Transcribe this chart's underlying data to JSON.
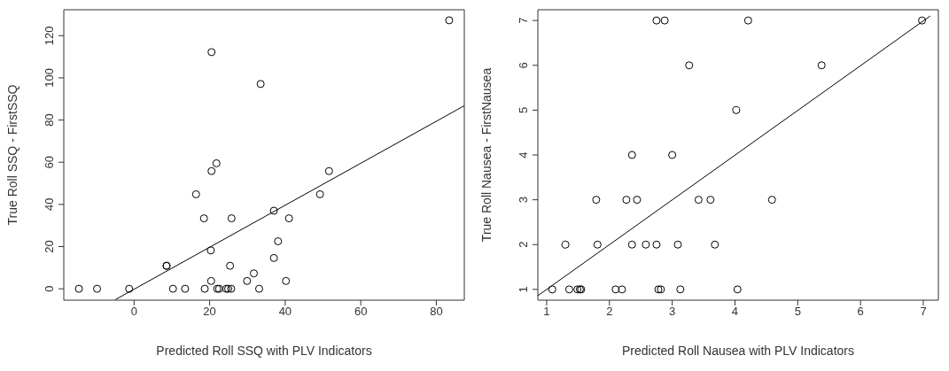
{
  "chart_data": [
    {
      "type": "scatter",
      "xlabel": "Predicted Roll SSQ with PLV Indicators",
      "ylabel": "True Roll SSQ - FirstSSQ",
      "xlim": [
        -18.6,
        87.4
      ],
      "ylim": [
        -5.4,
        132.3
      ],
      "xticks": [
        0,
        20,
        40,
        60,
        80
      ],
      "yticks": [
        0,
        20,
        40,
        60,
        80,
        100,
        120
      ],
      "marker": "circle",
      "grid": false,
      "series": [
        {
          "color": "#000000",
          "x": [
            -14.6,
            -9.8,
            -1.3,
            8.6,
            8.6,
            10.3,
            13.5,
            16.4,
            18.5,
            18.7,
            20.3,
            20.4,
            20.5,
            20.5,
            21.8,
            22.0,
            22.5,
            24.4,
            24.9,
            25.7,
            25.4,
            25.8,
            29.9,
            31.7,
            33.1,
            33.5,
            37.0,
            37.0,
            38.1,
            40.2,
            41.0,
            49.2,
            51.6,
            83.4
          ],
          "values": [
            0,
            0,
            0,
            10.9,
            10.9,
            0,
            0,
            44.8,
            33.4,
            0,
            18.2,
            3.7,
            55.8,
            112.2,
            59.5,
            0,
            0,
            0,
            0,
            0,
            10.9,
            33.4,
            3.7,
            7.3,
            0,
            97.1,
            14.6,
            37.0,
            22.5,
            3.7,
            33.4,
            44.8,
            55.8,
            127.3
          ]
        },
        {
          "type": "line",
          "marker": "none",
          "color": "#000000",
          "x": [
            -4.9,
            87.4
          ],
          "values": [
            -5.1,
            86.8
          ]
        }
      ]
    },
    {
      "type": "scatter",
      "xlabel": "Predicted Roll Nausea with PLV Indicators",
      "ylabel": "True Roll Nausea - FirstNausea",
      "xlim": [
        0.86,
        7.24
      ],
      "ylim": [
        0.76,
        7.24
      ],
      "xticks": [
        1,
        2,
        3,
        4,
        5,
        6,
        7
      ],
      "yticks": [
        1,
        2,
        3,
        4,
        5,
        6,
        7
      ],
      "marker": "circle",
      "grid": false,
      "series": [
        {
          "color": "#000000",
          "x": [
            2.75,
            2.88,
            4.21,
            6.98,
            3.27,
            5.38,
            4.02,
            2.36,
            3.0,
            1.79,
            2.27,
            2.44,
            3.42,
            3.61,
            4.59,
            1.3,
            1.81,
            2.36,
            2.58,
            2.75,
            3.09,
            3.68,
            1.09,
            1.36,
            1.49,
            1.53,
            1.55,
            2.1,
            2.2,
            2.78,
            2.82,
            3.13,
            4.04
          ],
          "values": [
            7,
            7,
            7,
            7,
            6,
            6,
            5,
            4,
            4,
            3,
            3,
            3,
            3,
            3,
            3,
            2,
            2,
            2,
            2,
            2,
            2,
            2,
            1,
            1,
            1,
            1,
            1,
            1,
            1,
            1,
            1,
            1,
            1
          ]
        },
        {
          "type": "line",
          "marker": "none",
          "color": "#000000",
          "x": [
            0.86,
            7.11
          ],
          "values": [
            0.86,
            7.1
          ]
        }
      ]
    }
  ]
}
